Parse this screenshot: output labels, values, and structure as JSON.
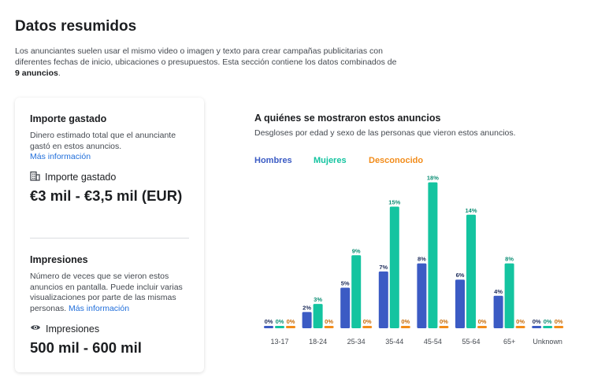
{
  "header": {
    "title": "Datos resumidos",
    "desc_part1": "Los anunciantes suelen usar el mismo video o imagen y texto para crear campañas publicitarias con diferentes fechas de inicio, ubicaciones o presupuestos. Esta sección contiene los datos combinados de ",
    "desc_bold": "9 anuncios",
    "desc_part2": "."
  },
  "spend": {
    "heading": "Importe gastado",
    "description": "Dinero estimado total que el anunciante gastó en estos anuncios.",
    "link": "Más información",
    "label": "Importe gastado",
    "icon": "building-icon",
    "value": "€3 mil - €3,5 mil (EUR)"
  },
  "impressions": {
    "heading": "Impresiones",
    "description": "Número de veces que se vieron estos anuncios en pantalla. Puede incluir varias visualizaciones por parte de las mismas personas.",
    "link": "Más información",
    "label": "Impresiones",
    "icon": "eye-icon",
    "value": "500 mil - 600 mil"
  },
  "audience": {
    "title": "A quiénes se mostraron estos anuncios",
    "subtitle": "Desgloses por edad y sexo de las personas que vieron estos anuncios."
  },
  "chart_data": {
    "type": "bar",
    "categories": [
      "13-17",
      "18-24",
      "25-34",
      "35-44",
      "45-54",
      "55-64",
      "65+",
      "Unknown"
    ],
    "series": [
      {
        "name": "Hombres",
        "color": "#3b5bc4",
        "values": [
          0,
          2,
          5,
          7,
          8,
          6,
          4,
          0
        ],
        "labels": [
          "0%",
          "2%",
          "5%",
          "7%",
          "8%",
          "6%",
          "4%",
          "0%"
        ]
      },
      {
        "name": "Mujeres",
        "color": "#14c4a0",
        "values": [
          0,
          3,
          9,
          15,
          18,
          14,
          8,
          0
        ],
        "labels": [
          "0%",
          "3%",
          "9%",
          "15%",
          "18%",
          "14%",
          "8%",
          "0%"
        ]
      },
      {
        "name": "Desconocido",
        "color": "#f28c1a",
        "values": [
          0,
          0,
          0,
          0,
          0,
          0,
          0,
          0
        ],
        "labels": [
          "0%",
          "0%",
          "0%",
          "0%",
          "0%",
          "0%",
          "0%",
          "0%"
        ]
      }
    ],
    "legend_position": "top-left",
    "ylim": [
      0,
      18
    ]
  }
}
